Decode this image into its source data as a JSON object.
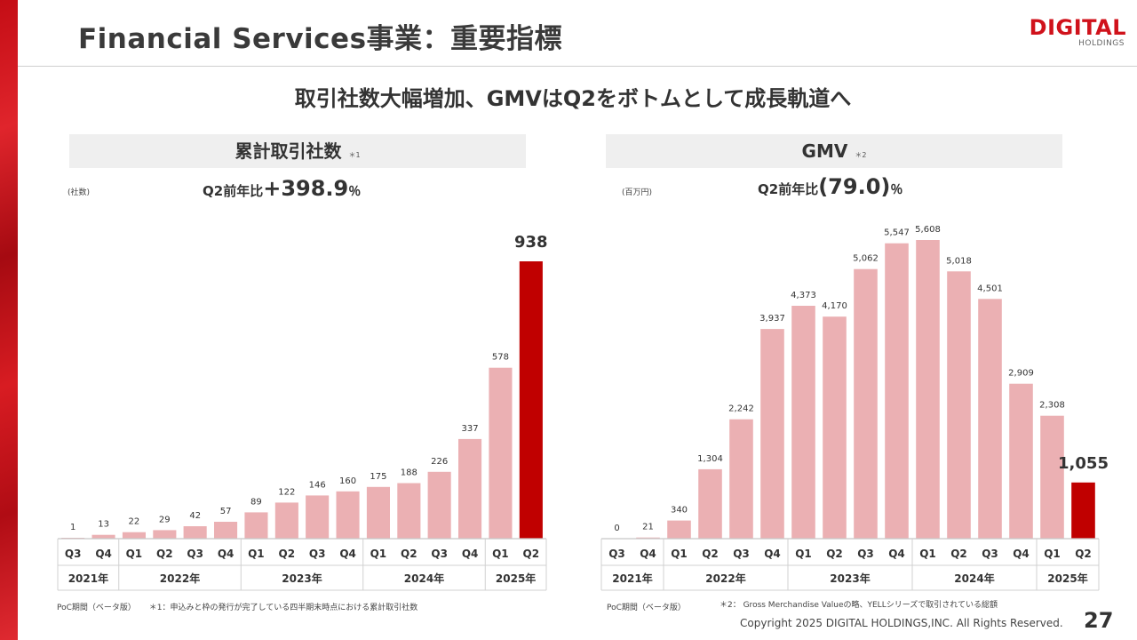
{
  "slide": {
    "title": "Financial Services事業：重要指標",
    "headline": "取引社数大幅増加、GMVはQ2をボトムとして成長軌道へ",
    "logo_main": "DIGITAL",
    "logo_sub": "HOLDINGS",
    "page_number": "27",
    "copyright": "Copyright 2025 DIGITAL HOLDINGS,INC. All Rights Reserved."
  },
  "colors": {
    "accent": "#d0121b",
    "bar_normal": "#ebb0b3",
    "bar_highlight": "#c00000"
  },
  "left_panel": {
    "title": "累計取引社数",
    "title_note": "＊1",
    "unit": "(社数)",
    "yoy_label": "Q2前年比",
    "yoy_value": "+398.9",
    "yoy_suffix": "％",
    "footnote_poc": "PoC期間（ベータ版）",
    "footnote_text": "＊1：申込みと枠の発行が完了している四半期末時点における累計取引社数"
  },
  "right_panel": {
    "title": "GMV",
    "title_note": "＊2",
    "unit": "(百万円)",
    "yoy_label": "Q2前年比",
    "yoy_value": "(79.0)",
    "yoy_suffix": "％",
    "footnote_poc": "PoC期間（ベータ版）",
    "footnote_text": "＊2： Gross Merchandise Valueの略、YELLシリーズで取引されている総額"
  },
  "chart_data": [
    {
      "type": "bar",
      "title": "累計取引社数",
      "ylabel": "(社数)",
      "categories": [
        "Q3",
        "Q4",
        "Q1",
        "Q2",
        "Q3",
        "Q4",
        "Q1",
        "Q2",
        "Q3",
        "Q4",
        "Q1",
        "Q2",
        "Q3",
        "Q4",
        "Q1",
        "Q2"
      ],
      "values": [
        1,
        13,
        22,
        29,
        42,
        57,
        89,
        122,
        146,
        160,
        175,
        188,
        226,
        337,
        578,
        938
      ],
      "labels": [
        "1",
        "13",
        "22",
        "29",
        "42",
        "57",
        "89",
        "122",
        "146",
        "160",
        "175",
        "188",
        "226",
        "337",
        "578",
        "938"
      ],
      "highlight_index": 15,
      "year_groups": [
        {
          "label": "2021年",
          "count": 2
        },
        {
          "label": "2022年",
          "count": 4
        },
        {
          "label": "2023年",
          "count": 4
        },
        {
          "label": "2024年",
          "count": 4
        },
        {
          "label": "2025年",
          "count": 2
        }
      ],
      "ylim": [
        0,
        938
      ],
      "grid": false
    },
    {
      "type": "bar",
      "title": "GMV",
      "ylabel": "(百万円)",
      "categories": [
        "Q3",
        "Q4",
        "Q1",
        "Q2",
        "Q3",
        "Q4",
        "Q1",
        "Q2",
        "Q3",
        "Q4",
        "Q1",
        "Q2",
        "Q3",
        "Q4",
        "Q1",
        "Q2"
      ],
      "values": [
        0,
        21,
        340,
        1304,
        2242,
        3937,
        4373,
        4170,
        5062,
        5547,
        5608,
        5018,
        4501,
        2909,
        2308,
        1055
      ],
      "labels": [
        "0",
        "21",
        "340",
        "1,304",
        "2,242",
        "3,937",
        "4,373",
        "4,170",
        "5,062",
        "5,547",
        "5,608",
        "5,018",
        "4,501",
        "2,909",
        "2,308",
        "1,055"
      ],
      "highlight_index": 15,
      "year_groups": [
        {
          "label": "2021年",
          "count": 2
        },
        {
          "label": "2022年",
          "count": 4
        },
        {
          "label": "2023年",
          "count": 4
        },
        {
          "label": "2024年",
          "count": 4
        },
        {
          "label": "2025年",
          "count": 2
        }
      ],
      "ylim": [
        0,
        5608
      ],
      "grid": false
    }
  ]
}
